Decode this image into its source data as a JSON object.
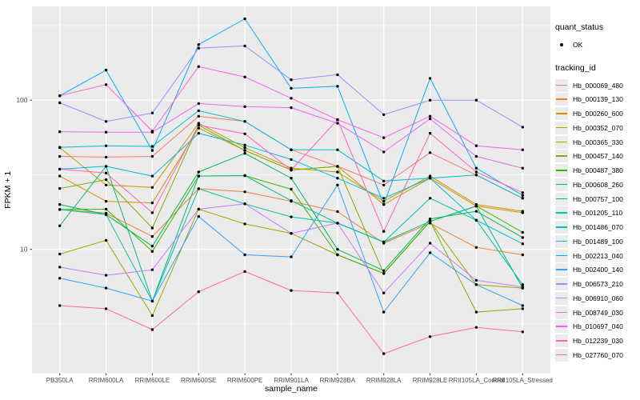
{
  "figure": {
    "background": "#FFFFFF",
    "panel_bg": "#EBEBEB",
    "grid_color": "#FFFFFF",
    "tick_label_color": "#4D4D4D",
    "tick_mark_color": "#333333",
    "axis_title_color": "#000000",
    "point_color": "#000000",
    "legend_key_bg": "#EBEBEB"
  },
  "legend": {
    "quant_status_title": "quant_status",
    "quant_status_items": [
      {
        "label": "OK",
        "symbol": "point"
      }
    ],
    "tracking_id_title": "tracking_id"
  },
  "chart_data": {
    "type": "line",
    "title": "",
    "xlabel": "sample_name",
    "ylabel": "FPKM + 1",
    "x_categories": [
      "PB350LA",
      "RRIM600LA",
      "RRIM600LE",
      "RRIM600SE",
      "RRIM600PE",
      "RRIM901LA",
      "RRIM928BA",
      "RRIM928LA",
      "RRIM928LE",
      "RRII105LA_Control",
      "RRII105LA_Stressed"
    ],
    "y_scale": "log10",
    "y_major_ticks": [
      10,
      100
    ],
    "y_minor_gridlines": [
      3.162,
      31.623,
      316.228
    ],
    "ylim": [
      1.45,
      430
    ],
    "grid": true,
    "legend_position": "right",
    "series": [
      {
        "name": "Hb_000069_480",
        "color": "#F8766D",
        "values": [
          42,
          41.5,
          42,
          78,
          72,
          46.5,
          36,
          27,
          44.5,
          31.5,
          22
        ]
      },
      {
        "name": "Hb_000139_130",
        "color": "#EA8331",
        "values": [
          18.5,
          17.5,
          12.2,
          25.5,
          24.3,
          21,
          17.9,
          11,
          15,
          10.3,
          9.2
        ]
      },
      {
        "name": "Hb_000260_600",
        "color": "#D89000",
        "values": [
          31,
          21,
          20.5,
          65,
          46,
          34,
          36,
          20,
          30,
          19.5,
          17.6
        ]
      },
      {
        "name": "Hb_000352_070",
        "color": "#C09B00",
        "values": [
          48,
          27,
          26,
          70,
          48,
          35,
          33,
          21,
          31,
          20,
          18
        ]
      },
      {
        "name": "Hb_000365_330",
        "color": "#A3A500",
        "values": [
          9.3,
          11.5,
          3.6,
          18.6,
          14.8,
          12.8,
          9.2,
          6.9,
          15.4,
          5.8,
          5.5
        ]
      },
      {
        "name": "Hb_000457_140",
        "color": "#7CAE00",
        "values": [
          25.6,
          29.3,
          13.9,
          68,
          46,
          34,
          36,
          6.9,
          15.4,
          3.8,
          4.0
        ]
      },
      {
        "name": "Hb_000487_380",
        "color": "#39B600",
        "values": [
          18.5,
          18.6,
          9.7,
          31,
          31.2,
          25.3,
          9.2,
          6.9,
          15.4,
          19.5,
          13
        ]
      },
      {
        "name": "Hb_000608_260",
        "color": "#00BB4E",
        "values": [
          20,
          17.1,
          10.5,
          33,
          44,
          30,
          10,
          7.2,
          16,
          18,
          12
        ]
      },
      {
        "name": "Hb_000757_100",
        "color": "#00BF7D",
        "values": [
          14.4,
          36,
          4.5,
          31,
          31.2,
          21.2,
          15,
          11.2,
          15.4,
          19.5,
          5.5
        ]
      },
      {
        "name": "Hb_001205_110",
        "color": "#00C1A3",
        "values": [
          18.5,
          17.1,
          4.5,
          25.5,
          20.2,
          16.5,
          15,
          11.2,
          22,
          15.7,
          5.8
        ]
      },
      {
        "name": "Hb_001486_070",
        "color": "#00BFC4",
        "values": [
          48.3,
          49.4,
          49,
          85,
          72,
          46.5,
          46.5,
          28.7,
          30,
          31.5,
          22
        ]
      },
      {
        "name": "Hb_001489_100",
        "color": "#00BAE0",
        "values": [
          34.5,
          36,
          31,
          60,
          50,
          40,
          30,
          22,
          30,
          15.7,
          10.9
        ]
      },
      {
        "name": "Hb_002213_040",
        "color": "#00B0F6",
        "values": [
          107,
          159,
          46,
          236,
          351,
          120,
          124,
          20,
          140,
          35,
          23
        ]
      },
      {
        "name": "Hb_002400_140",
        "color": "#35A2FF",
        "values": [
          6.4,
          5.5,
          4.5,
          16.6,
          9.2,
          8.9,
          27,
          3.8,
          9.5,
          5.8,
          4.2
        ]
      },
      {
        "name": "Hb_006573_210",
        "color": "#9590FF",
        "values": [
          96,
          72,
          82,
          223,
          231,
          137,
          148,
          80,
          100,
          100,
          66
        ]
      },
      {
        "name": "Hb_006910_060",
        "color": "#C77CFF",
        "values": [
          7.6,
          6.7,
          7.3,
          18.6,
          20.2,
          12.8,
          15,
          5.1,
          11,
          6.2,
          5.6
        ]
      },
      {
        "name": "Hb_008749_030",
        "color": "#E76BF3",
        "values": [
          61.4,
          61,
          61,
          95,
          90.5,
          89,
          70,
          45,
          75,
          42,
          35
        ]
      },
      {
        "name": "Hb_010697_040",
        "color": "#FA62DB",
        "values": [
          107,
          127,
          62,
          168,
          143,
          103,
          74,
          56,
          78,
          49.5,
          46.5
        ]
      },
      {
        "name": "Hb_012239_030",
        "color": "#FF62BC",
        "values": [
          34.5,
          32.5,
          17.6,
          68,
          59.5,
          34,
          74,
          13.2,
          60,
          33,
          24
        ]
      },
      {
        "name": "Hb_027760_070",
        "color": "#FF6A98",
        "values": [
          4.2,
          4.0,
          2.9,
          5.2,
          7.1,
          5.3,
          5.1,
          2.0,
          2.6,
          3.0,
          2.8
        ]
      }
    ]
  }
}
